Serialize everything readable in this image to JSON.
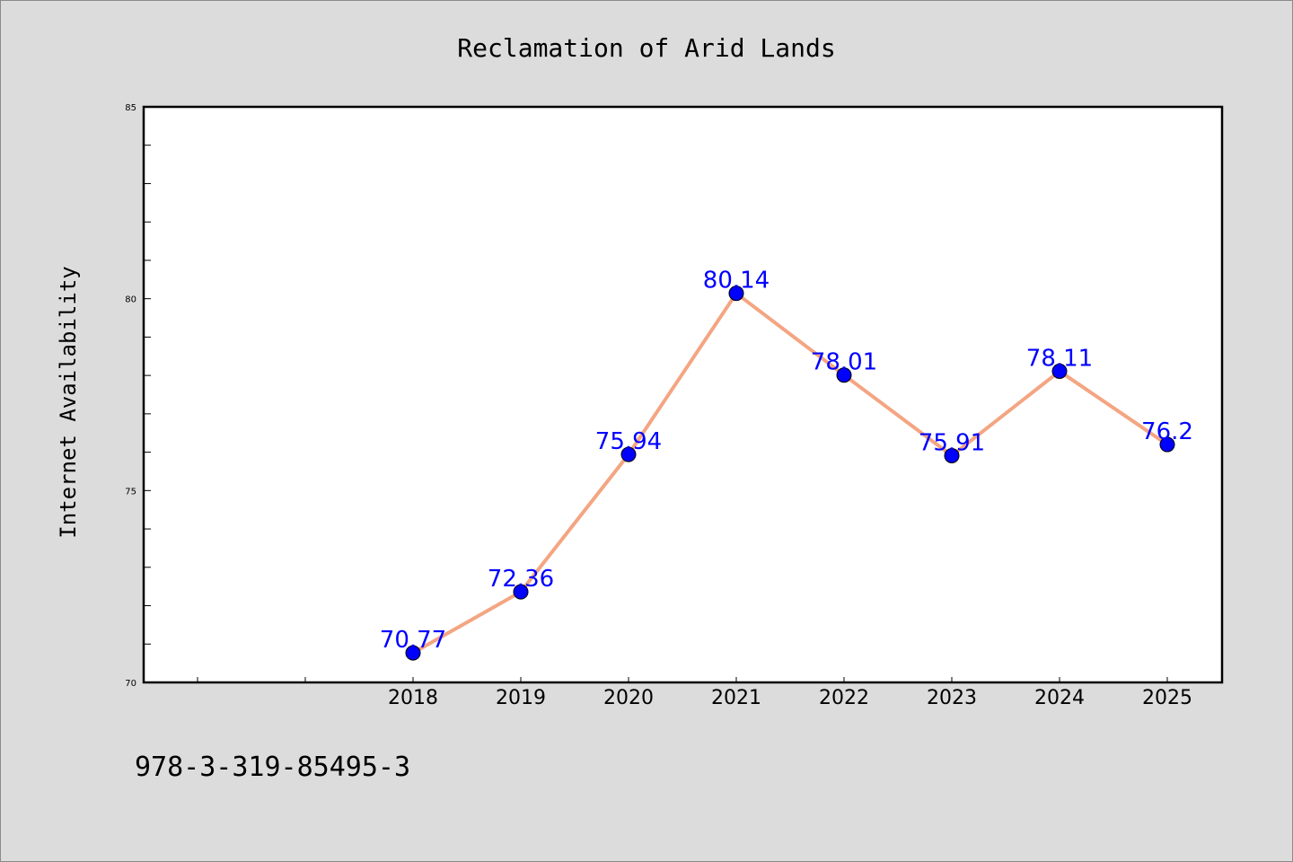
{
  "chart_data": {
    "type": "line",
    "title": "Reclamation of Arid Lands",
    "xlabel": "",
    "ylabel": "Internet Availability",
    "categories": [
      "2018",
      "2019",
      "2020",
      "2021",
      "2022",
      "2023",
      "2024",
      "2025"
    ],
    "series": [
      {
        "values": [
          70.77,
          72.36,
          75.94,
          80.14,
          78.01,
          75.91,
          78.11,
          76.2
        ],
        "labels": [
          "70.77",
          "72.36",
          "75.94",
          "80.14",
          "78.01",
          "75.91",
          "78.11",
          "76.2"
        ],
        "line_color": "#f4a582",
        "marker_color": "#0000ff"
      }
    ],
    "ylim": [
      70,
      85
    ],
    "yticks": [
      "70",
      "75",
      "80",
      "85"
    ],
    "grid": false,
    "legend": "none"
  },
  "caption": "978-3-319-85495-3"
}
